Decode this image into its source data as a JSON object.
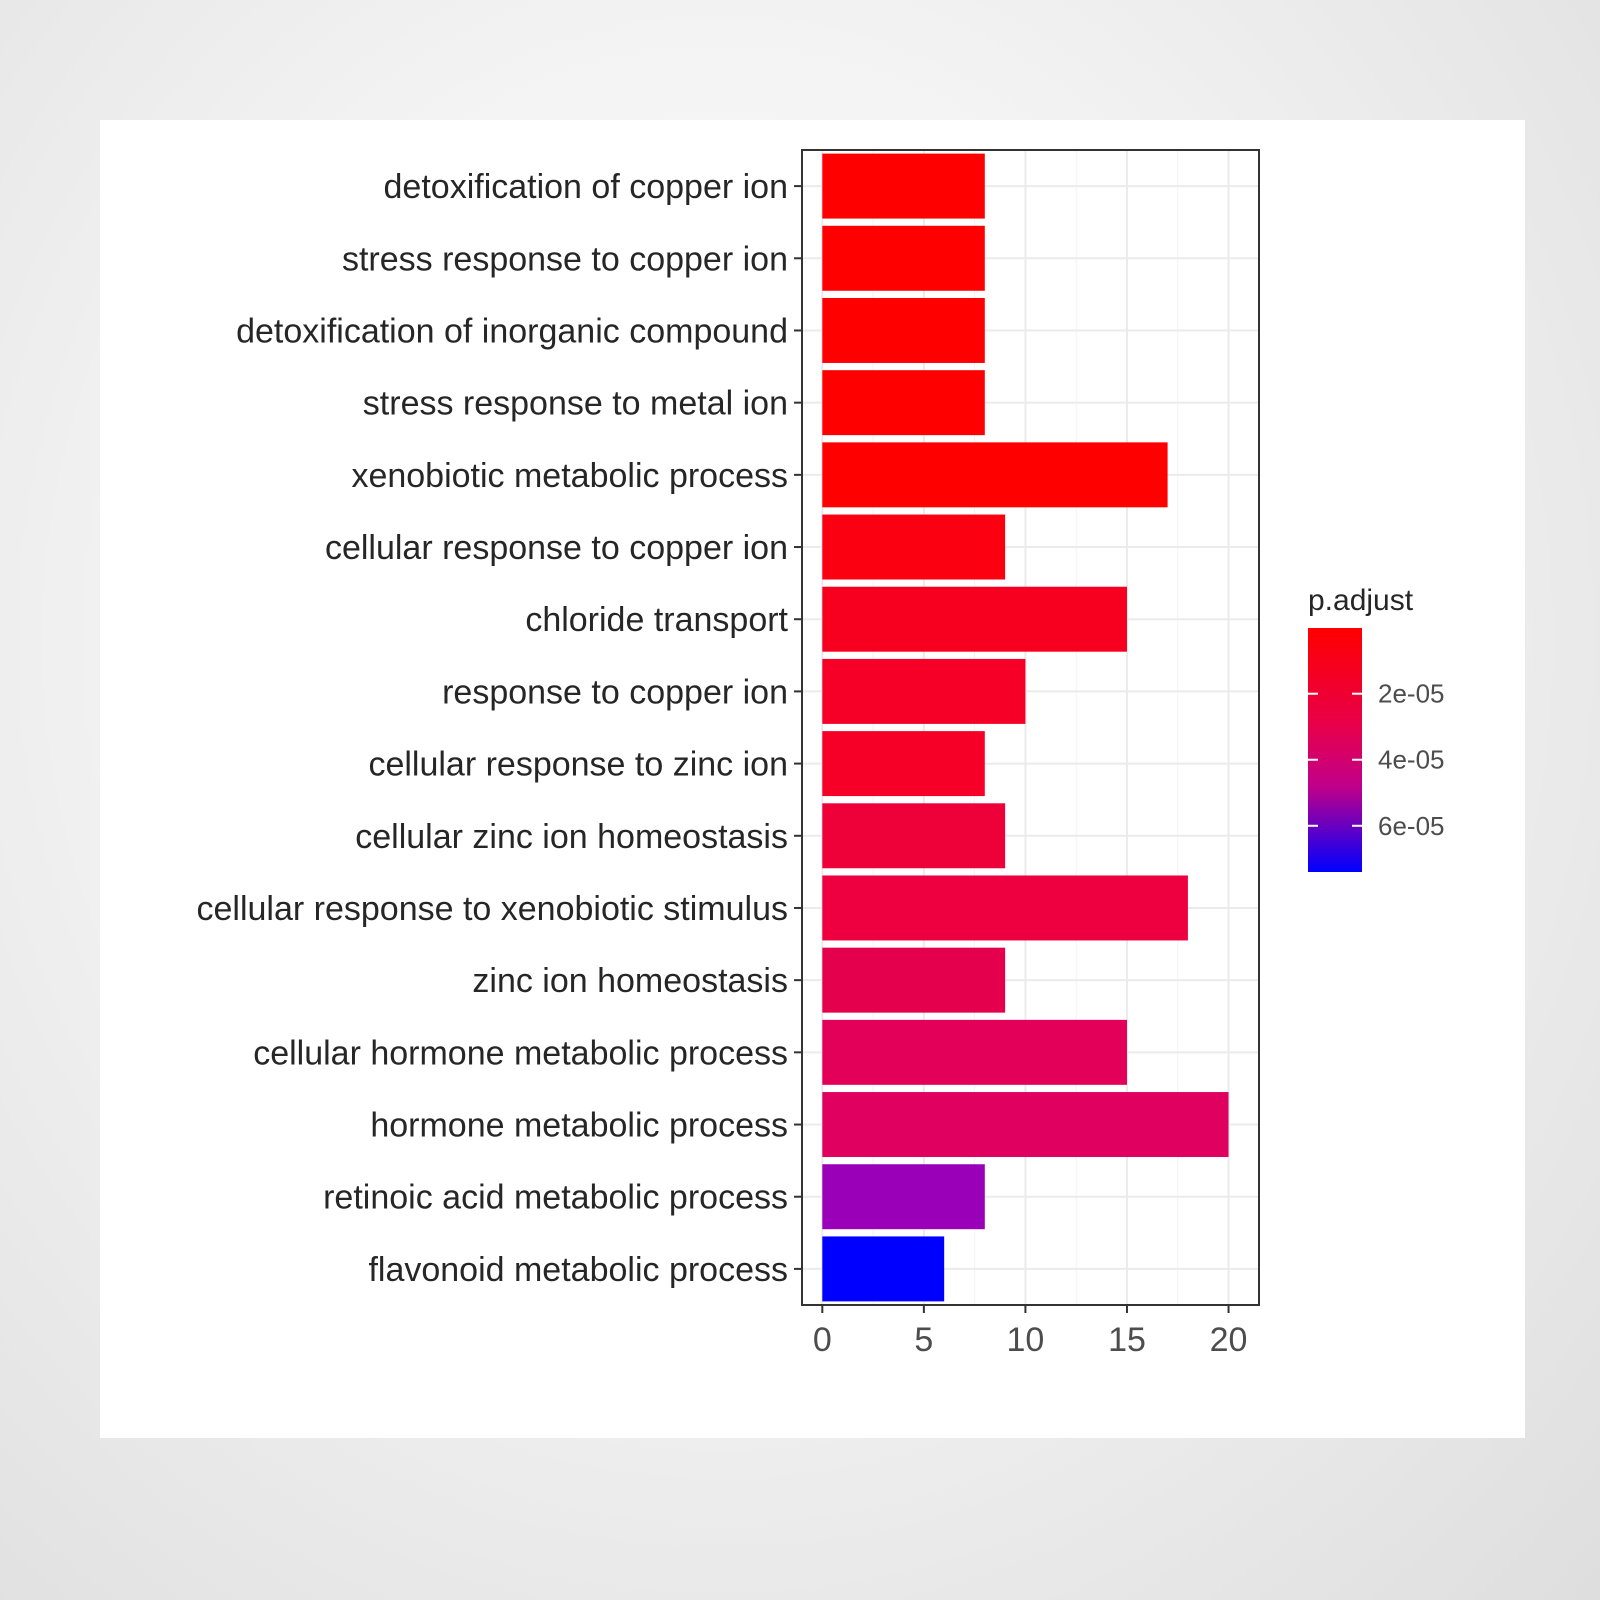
{
  "chart_data": {
    "type": "bar",
    "orientation": "horizontal",
    "categories": [
      "detoxification of copper ion",
      "stress response to copper ion",
      "detoxification of inorganic compound",
      "stress response to metal ion",
      "xenobiotic metabolic process",
      "cellular response to copper ion",
      "chloride transport",
      "response to copper ion",
      "cellular response to zinc ion",
      "cellular zinc ion homeostasis",
      "cellular response to xenobiotic stimulus",
      "zinc ion homeostasis",
      "cellular hormone metabolic process",
      "hormone metabolic process",
      "retinoic acid metabolic process",
      "flavonoid metabolic process"
    ],
    "values": [
      8,
      8,
      8,
      8,
      17,
      9,
      15,
      10,
      8,
      9,
      18,
      9,
      15,
      20,
      8,
      6
    ],
    "colors": [
      "#FF0000",
      "#FF0000",
      "#FF0000",
      "#FF0000",
      "#FF0000",
      "#FB0010",
      "#F70020",
      "#F70028",
      "#F70028",
      "#EE0038",
      "#EE0040",
      "#E4004C",
      "#E30058",
      "#DF0060",
      "#9A00B8",
      "#0000FF"
    ],
    "x_ticks": [
      0,
      5,
      10,
      15,
      20
    ],
    "xlim": [
      -1,
      21.5
    ],
    "xlabel": "",
    "ylabel": "",
    "grid": true,
    "legend": {
      "title": "p.adjust",
      "ticks": [
        "2e-05",
        "4e-05",
        "6e-05"
      ],
      "tick_values": [
        2e-05,
        4e-05,
        6e-05
      ],
      "range": [
        1e-07,
        7.4e-05
      ],
      "color_low": "#FF0000",
      "color_high": "#0000FF",
      "placement": "right"
    }
  }
}
